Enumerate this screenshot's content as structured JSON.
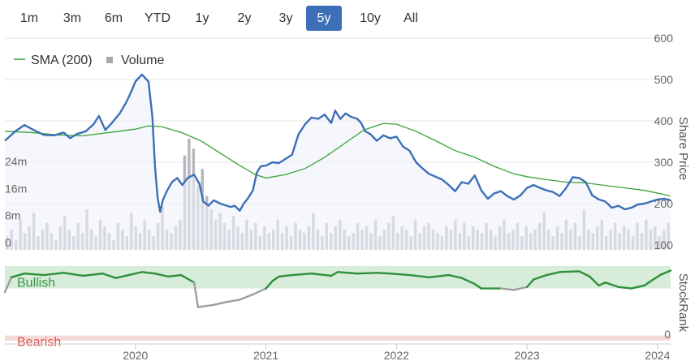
{
  "range_selector": {
    "buttons": [
      "1m",
      "3m",
      "6m",
      "YTD",
      "1y",
      "2y",
      "3y",
      "5y",
      "10y",
      "All"
    ],
    "active": "5y"
  },
  "colors": {
    "price": "#3d6fb6",
    "price_fill": "#eef1fa",
    "sma": "#3aa23a",
    "volume": "#b7b7bf",
    "bullish_band": "#d7ecd9",
    "bearish_band": "#f7dada",
    "stockrank_bull": "#2f8f3a",
    "stockrank_neutral": "#9e9e9e",
    "bullish_text": "#3a9a45",
    "bearish_text": "#d9534f",
    "active_button": "#3d6fb6"
  },
  "chart_data": [
    {
      "type": "line",
      "x_ticks": [
        "2020",
        "2021",
        "2022",
        "2023",
        "2024"
      ],
      "yaxis_right": {
        "title": "Share Price",
        "ticks": [
          "600",
          "500",
          "400",
          "300",
          "200",
          "100"
        ],
        "range": [
          100,
          600
        ]
      },
      "yaxis_left": {
        "ticks": [
          "24m",
          "16m",
          "8m",
          "0"
        ],
        "range_m": [
          0,
          38
        ]
      },
      "legend": [
        {
          "name": "SMA (200)",
          "marker": "line"
        },
        {
          "name": "Volume",
          "marker": "square"
        }
      ],
      "series": [
        {
          "name": "Price",
          "points": [
            [
              2019.0,
              352
            ],
            [
              2019.08,
              375
            ],
            [
              2019.15,
              390
            ],
            [
              2019.22,
              378
            ],
            [
              2019.3,
              366
            ],
            [
              2019.38,
              365
            ],
            [
              2019.45,
              372
            ],
            [
              2019.5,
              358
            ],
            [
              2019.55,
              368
            ],
            [
              2019.62,
              375
            ],
            [
              2019.68,
              392
            ],
            [
              2019.72,
              412
            ],
            [
              2019.77,
              378
            ],
            [
              2019.82,
              395
            ],
            [
              2019.88,
              418
            ],
            [
              2019.93,
              445
            ],
            [
              2019.97,
              472
            ],
            [
              2020.0,
              495
            ],
            [
              2020.05,
              512
            ],
            [
              2020.1,
              495
            ],
            [
              2020.13,
              410
            ],
            [
              2020.15,
              290
            ],
            [
              2020.17,
              215
            ],
            [
              2020.19,
              180
            ],
            [
              2020.21,
              208
            ],
            [
              2020.24,
              230
            ],
            [
              2020.28,
              252
            ],
            [
              2020.32,
              262
            ],
            [
              2020.36,
              245
            ],
            [
              2020.4,
              262
            ],
            [
              2020.45,
              270
            ],
            [
              2020.49,
              248
            ],
            [
              2020.52,
              205
            ],
            [
              2020.56,
              195
            ],
            [
              2020.6,
              208
            ],
            [
              2020.65,
              200
            ],
            [
              2020.7,
              195
            ],
            [
              2020.73,
              192
            ],
            [
              2020.76,
              195
            ],
            [
              2020.8,
              183
            ],
            [
              2020.83,
              200
            ],
            [
              2020.86,
              212
            ],
            [
              2020.9,
              232
            ],
            [
              2020.93,
              275
            ],
            [
              2020.96,
              290
            ],
            [
              2021.0,
              292
            ],
            [
              2021.05,
              300
            ],
            [
              2021.1,
              298
            ],
            [
              2021.15,
              308
            ],
            [
              2021.2,
              318
            ],
            [
              2021.25,
              368
            ],
            [
              2021.3,
              392
            ],
            [
              2021.35,
              408
            ],
            [
              2021.4,
              405
            ],
            [
              2021.45,
              415
            ],
            [
              2021.5,
              395
            ],
            [
              2021.53,
              425
            ],
            [
              2021.57,
              405
            ],
            [
              2021.61,
              418
            ],
            [
              2021.65,
              410
            ],
            [
              2021.7,
              405
            ],
            [
              2021.73,
              395
            ],
            [
              2021.76,
              375
            ],
            [
              2021.8,
              368
            ],
            [
              2021.85,
              352
            ],
            [
              2021.9,
              365
            ],
            [
              2021.95,
              358
            ],
            [
              2022.0,
              362
            ],
            [
              2022.05,
              338
            ],
            [
              2022.1,
              328
            ],
            [
              2022.15,
              300
            ],
            [
              2022.2,
              285
            ],
            [
              2022.25,
              272
            ],
            [
              2022.3,
              265
            ],
            [
              2022.35,
              258
            ],
            [
              2022.4,
              245
            ],
            [
              2022.45,
              230
            ],
            [
              2022.5,
              252
            ],
            [
              2022.55,
              248
            ],
            [
              2022.6,
              268
            ],
            [
              2022.65,
              232
            ],
            [
              2022.7,
              212
            ],
            [
              2022.75,
              225
            ],
            [
              2022.8,
              230
            ],
            [
              2022.85,
              218
            ],
            [
              2022.9,
              210
            ],
            [
              2022.95,
              220
            ],
            [
              2023.0,
              238
            ],
            [
              2023.05,
              245
            ],
            [
              2023.1,
              238
            ],
            [
              2023.15,
              232
            ],
            [
              2023.2,
              228
            ],
            [
              2023.25,
              218
            ],
            [
              2023.3,
              238
            ],
            [
              2023.35,
              264
            ],
            [
              2023.4,
              262
            ],
            [
              2023.45,
              252
            ],
            [
              2023.5,
              220
            ],
            [
              2023.55,
              210
            ],
            [
              2023.6,
              205
            ],
            [
              2023.65,
              190
            ],
            [
              2023.7,
              195
            ],
            [
              2023.75,
              186
            ],
            [
              2023.8,
              190
            ],
            [
              2023.85,
              198
            ],
            [
              2023.9,
              200
            ],
            [
              2023.95,
              205
            ],
            [
              2024.0,
              210
            ],
            [
              2024.05,
              212
            ],
            [
              2024.1,
              208
            ]
          ]
        },
        {
          "name": "SMA (200)",
          "points": [
            [
              2019.0,
              375
            ],
            [
              2019.2,
              372
            ],
            [
              2019.4,
              366
            ],
            [
              2019.6,
              364
            ],
            [
              2019.8,
              372
            ],
            [
              2020.0,
              380
            ],
            [
              2020.1,
              388
            ],
            [
              2020.2,
              386
            ],
            [
              2020.35,
              372
            ],
            [
              2020.5,
              352
            ],
            [
              2020.65,
              322
            ],
            [
              2020.8,
              292
            ],
            [
              2020.92,
              270
            ],
            [
              2021.0,
              262
            ],
            [
              2021.15,
              270
            ],
            [
              2021.3,
              285
            ],
            [
              2021.45,
              312
            ],
            [
              2021.6,
              345
            ],
            [
              2021.75,
              378
            ],
            [
              2021.9,
              394
            ],
            [
              2022.0,
              392
            ],
            [
              2022.15,
              375
            ],
            [
              2022.3,
              352
            ],
            [
              2022.45,
              328
            ],
            [
              2022.6,
              312
            ],
            [
              2022.75,
              290
            ],
            [
              2022.9,
              272
            ],
            [
              2023.0,
              265
            ],
            [
              2023.15,
              258
            ],
            [
              2023.3,
              252
            ],
            [
              2023.45,
              250
            ],
            [
              2023.6,
              244
            ],
            [
              2023.75,
              238
            ],
            [
              2023.9,
              232
            ],
            [
              2024.05,
              222
            ],
            [
              2024.1,
              218
            ]
          ]
        }
      ],
      "volume_m": [
        4,
        6,
        3,
        9,
        5,
        7,
        11,
        4,
        6,
        8,
        5,
        3,
        7,
        10,
        6,
        4,
        8,
        5,
        12,
        6,
        4,
        9,
        7,
        5,
        3,
        8,
        6,
        4,
        11,
        7,
        5,
        9,
        6,
        4,
        8,
        13,
        6,
        5,
        7,
        9,
        28,
        33,
        30,
        19,
        24,
        16,
        12,
        9,
        11,
        8,
        6,
        10,
        7,
        5,
        9,
        6,
        8,
        4,
        7,
        5,
        6,
        9,
        5,
        7,
        4,
        8,
        6,
        5,
        7,
        11,
        6,
        4,
        8,
        5,
        7,
        9,
        6,
        4,
        5,
        8,
        6,
        7,
        5,
        9,
        4,
        6,
        8,
        10,
        5,
        7,
        6,
        4,
        9,
        5,
        7,
        8,
        6,
        5,
        4,
        7,
        6,
        9,
        5,
        8,
        4,
        7,
        6,
        5,
        8,
        6,
        4,
        7,
        9,
        5,
        6,
        8,
        4,
        7,
        5,
        6,
        8,
        11,
        6,
        4,
        7,
        5,
        9,
        6,
        8,
        4,
        12,
        6,
        5,
        7,
        9,
        4,
        6,
        8,
        5,
        7,
        6,
        4,
        8,
        5,
        9,
        6,
        7,
        4,
        6,
        8
      ]
    },
    {
      "type": "line",
      "title": "StockRank",
      "bands": [
        {
          "label": "Bullish",
          "range": [
            70,
            100
          ]
        },
        {
          "label": "Bearish",
          "range": [
            0,
            7
          ]
        }
      ],
      "y_ticks": [
        "0"
      ],
      "series": [
        {
          "name": "StockRank",
          "points": [
            [
              2019.0,
              65
            ],
            [
              2019.05,
              85
            ],
            [
              2019.15,
              90
            ],
            [
              2019.3,
              88
            ],
            [
              2019.45,
              91
            ],
            [
              2019.6,
              87
            ],
            [
              2019.75,
              90
            ],
            [
              2019.85,
              84
            ],
            [
              2019.95,
              88
            ],
            [
              2020.05,
              92
            ],
            [
              2020.15,
              90
            ],
            [
              2020.25,
              86
            ],
            [
              2020.35,
              88
            ],
            [
              2020.45,
              78
            ],
            [
              2020.48,
              45
            ],
            [
              2020.6,
              48
            ],
            [
              2020.7,
              52
            ],
            [
              2020.8,
              55
            ],
            [
              2020.9,
              62
            ],
            [
              2021.0,
              70
            ],
            [
              2021.05,
              80
            ],
            [
              2021.1,
              86
            ],
            [
              2021.2,
              88
            ],
            [
              2021.35,
              90
            ],
            [
              2021.5,
              87
            ],
            [
              2021.55,
              92
            ],
            [
              2021.7,
              90
            ],
            [
              2021.85,
              91
            ],
            [
              2021.95,
              90
            ],
            [
              2022.1,
              88
            ],
            [
              2022.25,
              85
            ],
            [
              2022.4,
              88
            ],
            [
              2022.5,
              84
            ],
            [
              2022.6,
              76
            ],
            [
              2022.65,
              70
            ],
            [
              2022.8,
              70
            ],
            [
              2022.9,
              68
            ],
            [
              2023.0,
              72
            ],
            [
              2023.05,
              82
            ],
            [
              2023.15,
              88
            ],
            [
              2023.25,
              92
            ],
            [
              2023.4,
              93
            ],
            [
              2023.48,
              86
            ],
            [
              2023.55,
              74
            ],
            [
              2023.6,
              78
            ],
            [
              2023.7,
              72
            ],
            [
              2023.8,
              70
            ],
            [
              2023.9,
              74
            ],
            [
              2023.95,
              80
            ],
            [
              2024.02,
              88
            ],
            [
              2024.1,
              94
            ]
          ]
        }
      ]
    }
  ]
}
